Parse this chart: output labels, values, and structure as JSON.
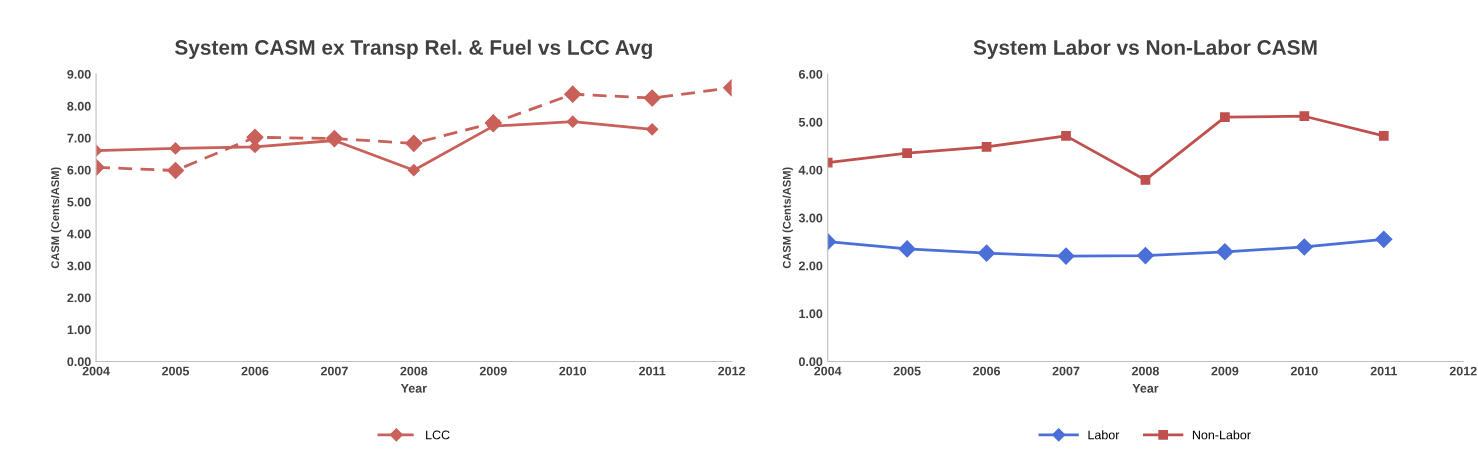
{
  "chart_data": [
    {
      "type": "line",
      "title": "System CASM ex Transp Rel. & Fuel vs LCC Avg",
      "xlabel": "Year",
      "ylabel": "CASM (Cents/ASM)",
      "x": [
        2004,
        2005,
        2006,
        2007,
        2008,
        2009,
        2010,
        2011,
        2012
      ],
      "series": [
        {
          "name": "LCC",
          "color": "#c9605a",
          "line_style": "dashed",
          "marker": "diamond",
          "values": [
            6.08,
            5.98,
            7.02,
            6.98,
            6.83,
            7.47,
            8.37,
            8.25,
            8.57
          ]
        },
        {
          "color": "#c9605a",
          "line_style": "solid",
          "marker": "diamond",
          "values": [
            6.6,
            6.67,
            6.72,
            6.92,
            5.99,
            7.37,
            7.51,
            7.27,
            null
          ]
        }
      ],
      "xlim": [
        2004,
        2012
      ],
      "xticks": [
        2004,
        2005,
        2006,
        2007,
        2008,
        2009,
        2010,
        2011,
        2012
      ],
      "ylim": [
        0,
        9
      ],
      "yticks": [
        {
          "value": 0,
          "label": "0.00"
        },
        {
          "value": 1,
          "label": "1.00"
        },
        {
          "value": 2,
          "label": "2.00"
        },
        {
          "value": 3,
          "label": "3.00"
        },
        {
          "value": 4,
          "label": "4.00"
        },
        {
          "value": 5,
          "label": "5.00"
        },
        {
          "value": 6,
          "label": "6.00"
        },
        {
          "value": 7,
          "label": "7.00"
        },
        {
          "value": 8,
          "label": "8.00"
        },
        {
          "value": 9,
          "label": "9.00"
        }
      ],
      "grid": false,
      "legend": "bottom"
    },
    {
      "type": "line",
      "title": "System Labor vs Non-Labor CASM",
      "xlabel": "Year",
      "ylabel": "CASM (Cents/ASM)",
      "x": [
        2004,
        2005,
        2006,
        2007,
        2008,
        2009,
        2010,
        2011
      ],
      "series": [
        {
          "name": "Labor",
          "color": "#4a6fd8",
          "line_style": "solid",
          "marker": "diamond",
          "values": [
            2.5,
            2.35,
            2.26,
            2.2,
            2.21,
            2.29,
            2.39,
            2.55
          ]
        },
        {
          "name": "Non-Labor",
          "color": "#c0504d",
          "line_style": "solid",
          "marker": "square",
          "values": [
            4.15,
            4.35,
            4.48,
            4.71,
            3.79,
            5.1,
            5.12,
            4.71
          ]
        }
      ],
      "xlim": [
        2004,
        2012
      ],
      "xticks": [
        2004,
        2005,
        2006,
        2007,
        2008,
        2009,
        2010,
        2011,
        2012
      ],
      "ylim": [
        0,
        6
      ],
      "yticks": [
        {
          "value": 0,
          "label": "0.00"
        },
        {
          "value": 1,
          "label": "1.00"
        },
        {
          "value": 2,
          "label": "2.00"
        },
        {
          "value": 3,
          "label": "3.00"
        },
        {
          "value": 4,
          "label": "4.00"
        },
        {
          "value": 5,
          "label": "5.00"
        },
        {
          "value": 6,
          "label": "6.00"
        }
      ],
      "grid": false,
      "legend": "bottom"
    }
  ]
}
